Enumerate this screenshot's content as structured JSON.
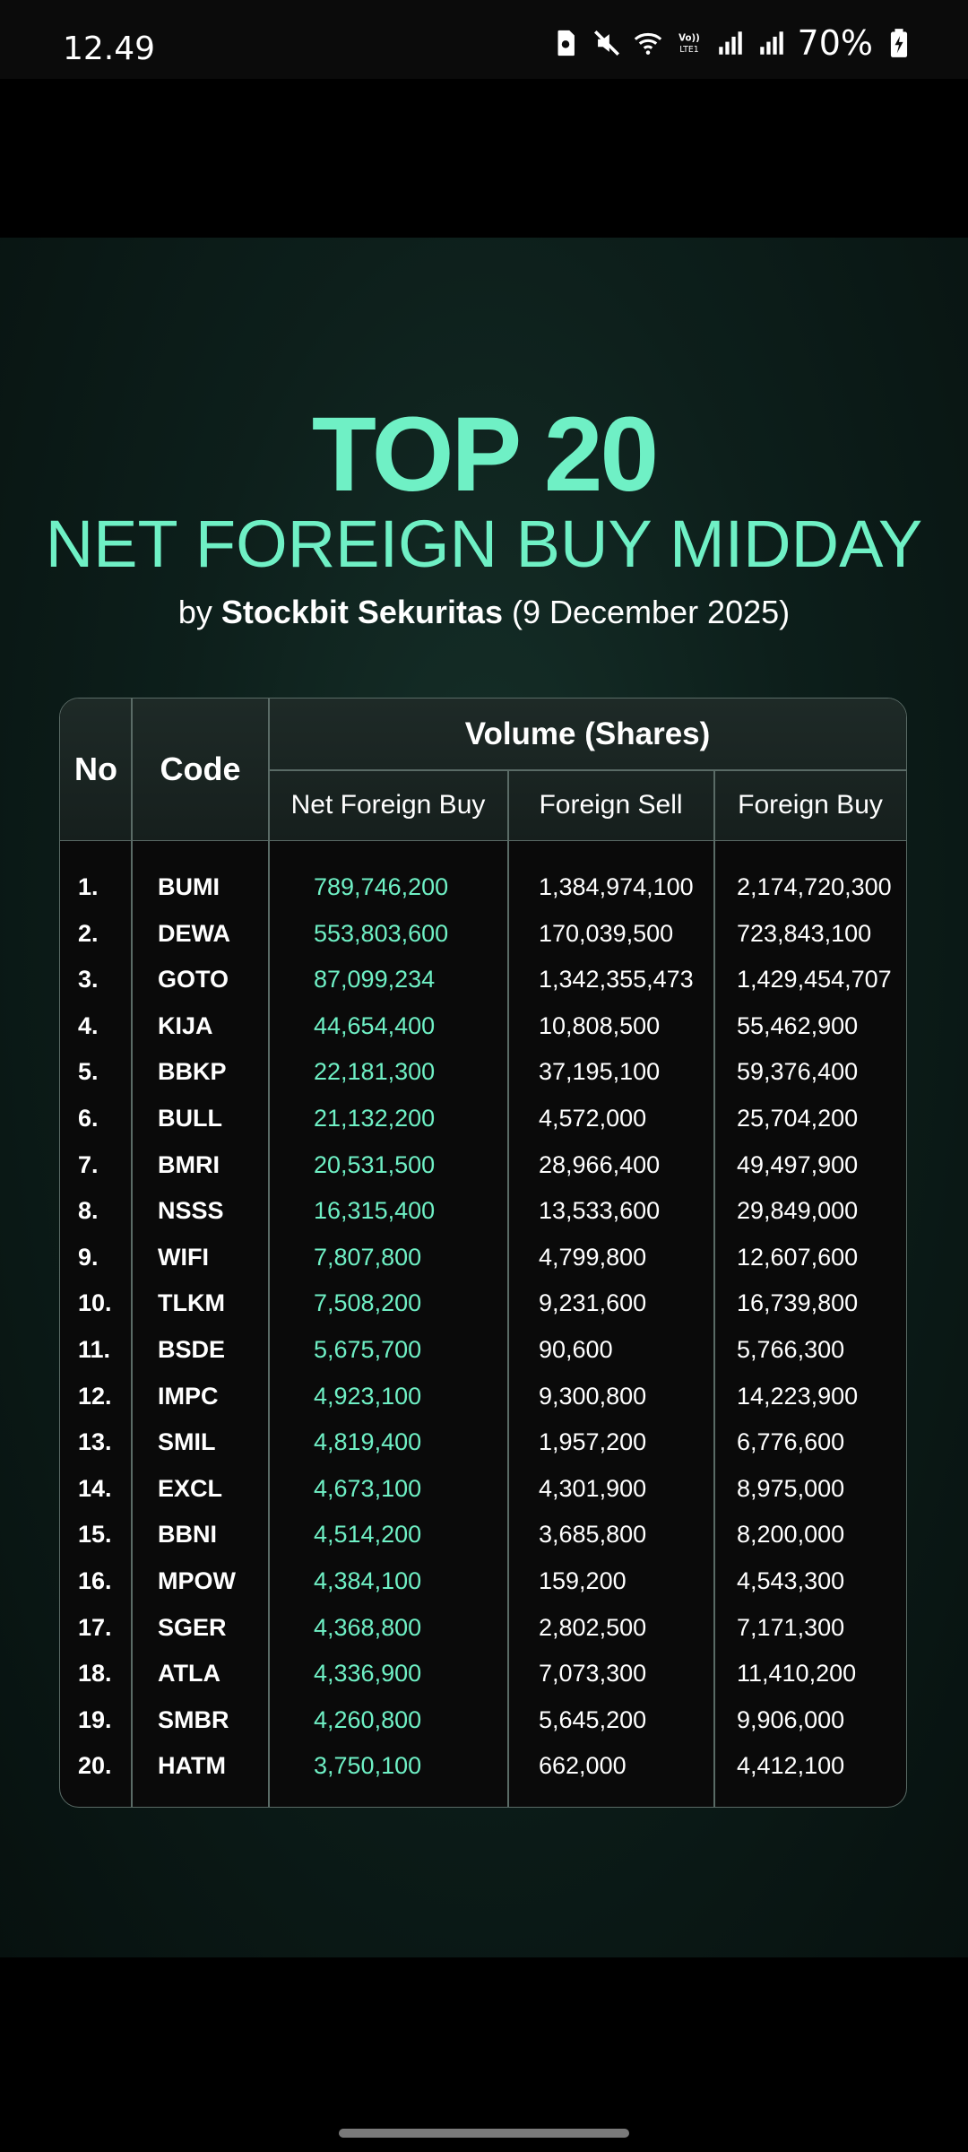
{
  "status_bar": {
    "time": "12.49",
    "battery": "70%"
  },
  "poster": {
    "title": "TOP 20",
    "subtitle": "NET FOREIGN BUY MIDDAY",
    "by_prefix": "by ",
    "brand": "Stockbit Sekuritas",
    "date_text": " (9 December 2025)"
  },
  "table": {
    "headers": {
      "no": "No",
      "code": "Code",
      "volume": "Volume (Shares)",
      "net_foreign_buy": "Net Foreign Buy",
      "foreign_sell": "Foreign Sell",
      "foreign_buy": "Foreign Buy"
    },
    "rows": [
      {
        "no": "1.",
        "code": "BUMI",
        "nfb": "789,746,200",
        "fs": "1,384,974,100",
        "fb": "2,174,720,300"
      },
      {
        "no": "2.",
        "code": "DEWA",
        "nfb": "553,803,600",
        "fs": "170,039,500",
        "fb": "723,843,100"
      },
      {
        "no": "3.",
        "code": "GOTO",
        "nfb": "87,099,234",
        "fs": "1,342,355,473",
        "fb": "1,429,454,707"
      },
      {
        "no": "4.",
        "code": "KIJA",
        "nfb": "44,654,400",
        "fs": "10,808,500",
        "fb": "55,462,900"
      },
      {
        "no": "5.",
        "code": "BBKP",
        "nfb": "22,181,300",
        "fs": "37,195,100",
        "fb": "59,376,400"
      },
      {
        "no": "6.",
        "code": "BULL",
        "nfb": "21,132,200",
        "fs": "4,572,000",
        "fb": "25,704,200"
      },
      {
        "no": "7.",
        "code": "BMRI",
        "nfb": "20,531,500",
        "fs": "28,966,400",
        "fb": "49,497,900"
      },
      {
        "no": "8.",
        "code": "NSSS",
        "nfb": "16,315,400",
        "fs": "13,533,600",
        "fb": "29,849,000"
      },
      {
        "no": "9.",
        "code": "WIFI",
        "nfb": "7,807,800",
        "fs": "4,799,800",
        "fb": "12,607,600"
      },
      {
        "no": "10.",
        "code": "TLKM",
        "nfb": "7,508,200",
        "fs": "9,231,600",
        "fb": "16,739,800"
      },
      {
        "no": "11.",
        "code": "BSDE",
        "nfb": "5,675,700",
        "fs": "90,600",
        "fb": "5,766,300"
      },
      {
        "no": "12.",
        "code": "IMPC",
        "nfb": "4,923,100",
        "fs": "9,300,800",
        "fb": "14,223,900"
      },
      {
        "no": "13.",
        "code": "SMIL",
        "nfb": "4,819,400",
        "fs": "1,957,200",
        "fb": "6,776,600"
      },
      {
        "no": "14.",
        "code": "EXCL",
        "nfb": "4,673,100",
        "fs": "4,301,900",
        "fb": "8,975,000"
      },
      {
        "no": "15.",
        "code": "BBNI",
        "nfb": "4,514,200",
        "fs": "3,685,800",
        "fb": "8,200,000"
      },
      {
        "no": "16.",
        "code": "MPOW",
        "nfb": "4,384,100",
        "fs": "159,200",
        "fb": "4,543,300"
      },
      {
        "no": "17.",
        "code": "SGER",
        "nfb": "4,368,800",
        "fs": "2,802,500",
        "fb": "7,171,300"
      },
      {
        "no": "18.",
        "code": "ATLA",
        "nfb": "4,336,900",
        "fs": "7,073,300",
        "fb": "11,410,200"
      },
      {
        "no": "19.",
        "code": "SMBR",
        "nfb": "4,260,800",
        "fs": "5,645,200",
        "fb": "9,906,000"
      },
      {
        "no": "20.",
        "code": "HATM",
        "nfb": "3,750,100",
        "fs": "662,000",
        "fb": "4,412,100"
      }
    ]
  },
  "colors": {
    "accent": "#6ff0c5",
    "background_dark": "#0d1f1b",
    "table_bg": "#0a0a0a"
  },
  "icons": [
    "sim-card-icon",
    "mute-icon",
    "wifi-icon",
    "volte-icon",
    "signal-1-icon",
    "signal-2-icon",
    "battery-charging-icon"
  ]
}
